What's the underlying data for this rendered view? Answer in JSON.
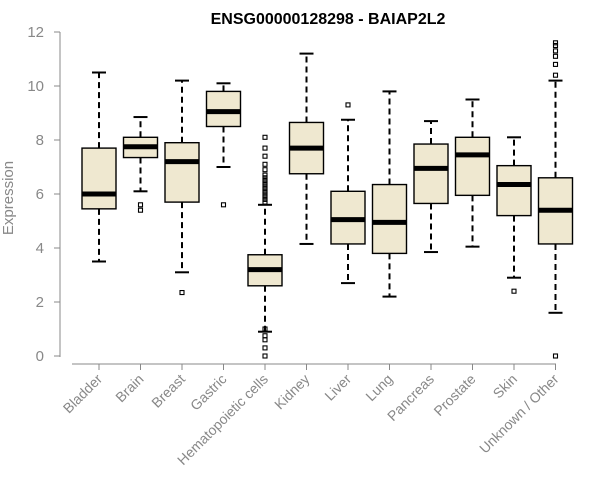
{
  "chart_data": {
    "type": "boxplot",
    "title": "ENSG00000128298 - BAIAP2L2",
    "xlabel": "",
    "ylabel": "Expression",
    "ylim": [
      0,
      12
    ],
    "yticks": [
      0,
      2,
      4,
      6,
      8,
      10,
      12
    ],
    "colors": {
      "box_fill": "#efe8d0",
      "box_stroke": "#000000",
      "axis": "#888888",
      "title": "#000000"
    },
    "categories": [
      "Bladder",
      "Brain",
      "Breast",
      "Gastric",
      "Hematopoietic cells",
      "Kidney",
      "Liver",
      "Lung",
      "Pancreas",
      "Prostate",
      "Skin",
      "Unknown / Other"
    ],
    "boxes": [
      {
        "name": "Bladder",
        "whisker_low": 3.5,
        "q1": 5.45,
        "median": 6.0,
        "q3": 7.7,
        "whisker_high": 10.5,
        "outliers": []
      },
      {
        "name": "Brain",
        "whisker_low": 6.1,
        "q1": 7.35,
        "median": 7.75,
        "q3": 8.1,
        "whisker_high": 8.85,
        "outliers": [
          5.4,
          5.6
        ]
      },
      {
        "name": "Breast",
        "whisker_low": 3.1,
        "q1": 5.7,
        "median": 7.2,
        "q3": 7.9,
        "whisker_high": 10.2,
        "outliers": [
          2.35
        ]
      },
      {
        "name": "Gastric",
        "whisker_low": 7.0,
        "q1": 8.5,
        "median": 9.05,
        "q3": 9.8,
        "whisker_high": 10.1,
        "outliers": [
          5.6
        ]
      },
      {
        "name": "Hematopoietic cells",
        "whisker_low": 0.9,
        "q1": 2.6,
        "median": 3.2,
        "q3": 3.75,
        "whisker_high": 5.6,
        "outliers": [
          0.0,
          0.3,
          0.6,
          0.75,
          1.0,
          5.7,
          5.8,
          5.9,
          6.0,
          6.1,
          6.2,
          6.3,
          6.4,
          6.5,
          6.6,
          6.7,
          6.9,
          7.1,
          7.4,
          7.7,
          8.1
        ]
      },
      {
        "name": "Kidney",
        "whisker_low": 4.15,
        "q1": 6.75,
        "median": 7.7,
        "q3": 8.65,
        "whisker_high": 11.2,
        "outliers": []
      },
      {
        "name": "Liver",
        "whisker_low": 2.7,
        "q1": 4.15,
        "median": 5.05,
        "q3": 6.1,
        "whisker_high": 8.75,
        "outliers": [
          9.3
        ]
      },
      {
        "name": "Lung",
        "whisker_low": 2.2,
        "q1": 3.8,
        "median": 4.95,
        "q3": 6.35,
        "whisker_high": 9.8,
        "outliers": []
      },
      {
        "name": "Pancreas",
        "whisker_low": 3.85,
        "q1": 5.65,
        "median": 6.95,
        "q3": 7.85,
        "whisker_high": 8.7,
        "outliers": []
      },
      {
        "name": "Prostate",
        "whisker_low": 4.05,
        "q1": 5.95,
        "median": 7.45,
        "q3": 8.1,
        "whisker_high": 9.5,
        "outliers": []
      },
      {
        "name": "Skin",
        "whisker_low": 2.9,
        "q1": 5.2,
        "median": 6.35,
        "q3": 7.05,
        "whisker_high": 8.1,
        "outliers": [
          2.4
        ]
      },
      {
        "name": "Unknown / Other",
        "whisker_low": 1.6,
        "q1": 4.15,
        "median": 5.4,
        "q3": 6.6,
        "whisker_high": 10.2,
        "outliers": [
          0.0,
          10.4,
          10.8,
          11.1,
          11.3,
          11.5,
          11.6
        ]
      }
    ]
  }
}
